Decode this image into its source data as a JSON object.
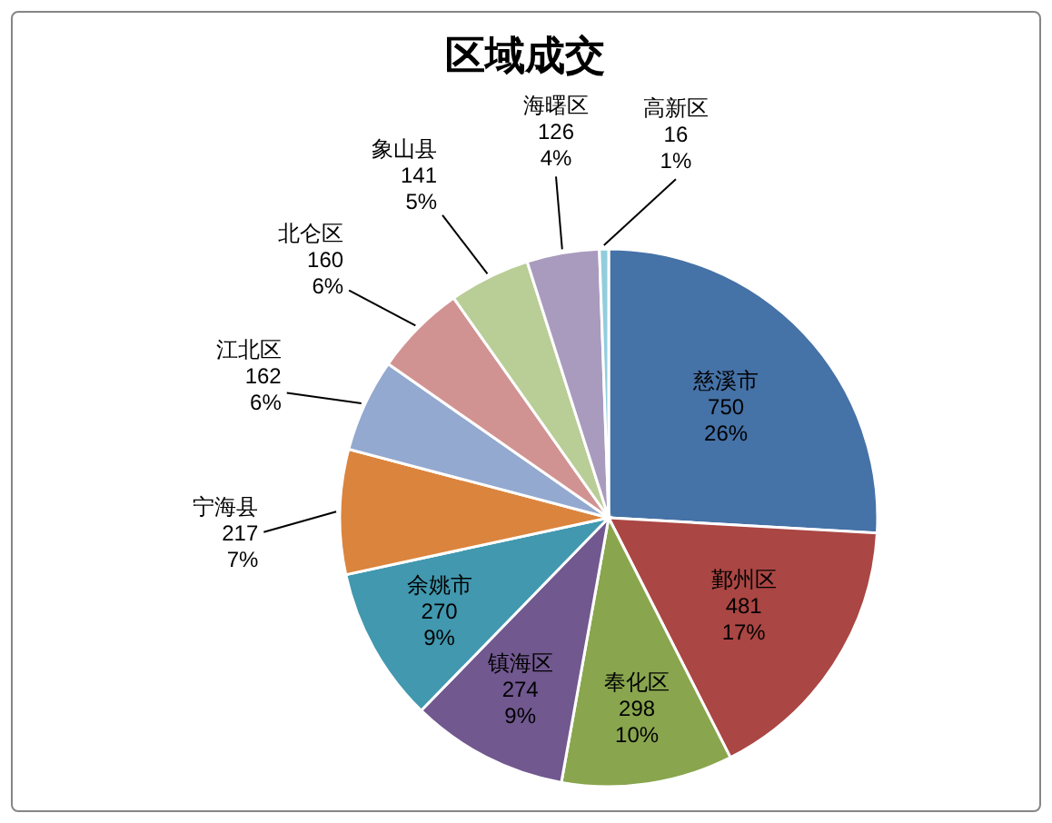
{
  "chart_data": {
    "type": "pie",
    "title": "区域成交",
    "categories": [
      "慈溪市",
      "鄞州区",
      "奉化区",
      "镇海区",
      "余姚市",
      "宁海县",
      "江北区",
      "北仑区",
      "象山县",
      "海曙区",
      "高新区"
    ],
    "values": [
      750,
      481,
      298,
      274,
      270,
      217,
      162,
      160,
      141,
      126,
      16
    ],
    "colors": [
      "#4572a7",
      "#aa4643",
      "#89a54e",
      "#71588f",
      "#4198af",
      "#db843d",
      "#93a9cf",
      "#d19392",
      "#b9cd96",
      "#a99bbd",
      "#92cddc"
    ],
    "value_labels": [
      "750\n26%",
      "481\n17%",
      "298\n10%",
      "274\n9%",
      "270\n9%",
      "217\n7%",
      "162\n6%",
      "160\n6%",
      "141\n5%",
      "126\n4%",
      "16\n1%"
    ]
  }
}
